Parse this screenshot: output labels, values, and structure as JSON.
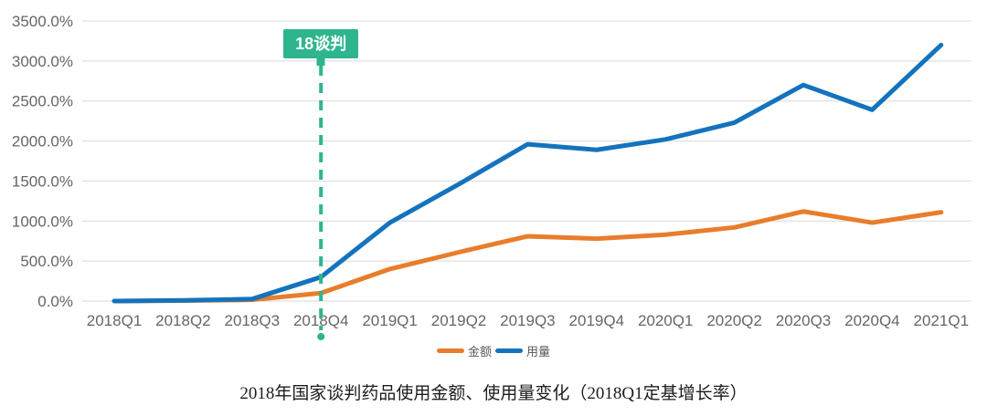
{
  "chart_data": {
    "type": "line",
    "title": "2018年国家谈判药品使用金额、使用量变化（2018Q1定基增长率）",
    "categories": [
      "2018Q1",
      "2018Q2",
      "2018Q3",
      "2018Q4",
      "2019Q1",
      "2019Q2",
      "2019Q3",
      "2019Q4",
      "2020Q1",
      "2020Q2",
      "2020Q3",
      "2020Q4",
      "2021Q1"
    ],
    "series": [
      {
        "name": "金额",
        "color": "#E87D2B",
        "values": [
          0,
          5,
          15,
          100,
          400,
          610,
          810,
          780,
          830,
          920,
          1120,
          980,
          1110
        ]
      },
      {
        "name": "用量",
        "color": "#1473BC",
        "values": [
          0,
          8,
          25,
          300,
          980,
          1460,
          1960,
          1890,
          2020,
          2230,
          2700,
          2390,
          3200
        ]
      }
    ],
    "y_ticks": [
      "3500.0%",
      "3000.0%",
      "2500.0%",
      "2000.0%",
      "1500.0%",
      "1000.0%",
      "500.0%",
      "0.0%"
    ],
    "ylim": [
      0,
      3500
    ],
    "grid": true,
    "legend_position": "bottom",
    "annotation": {
      "label": "18谈判",
      "category": "2018Q4",
      "color": "#2EB58E"
    },
    "colors": {
      "grid": "#D9D9D9",
      "axis_text": "#666666",
      "legend_text": "#595959",
      "caption_text": "#1C1C1C",
      "background": "#FFFFFF"
    }
  }
}
